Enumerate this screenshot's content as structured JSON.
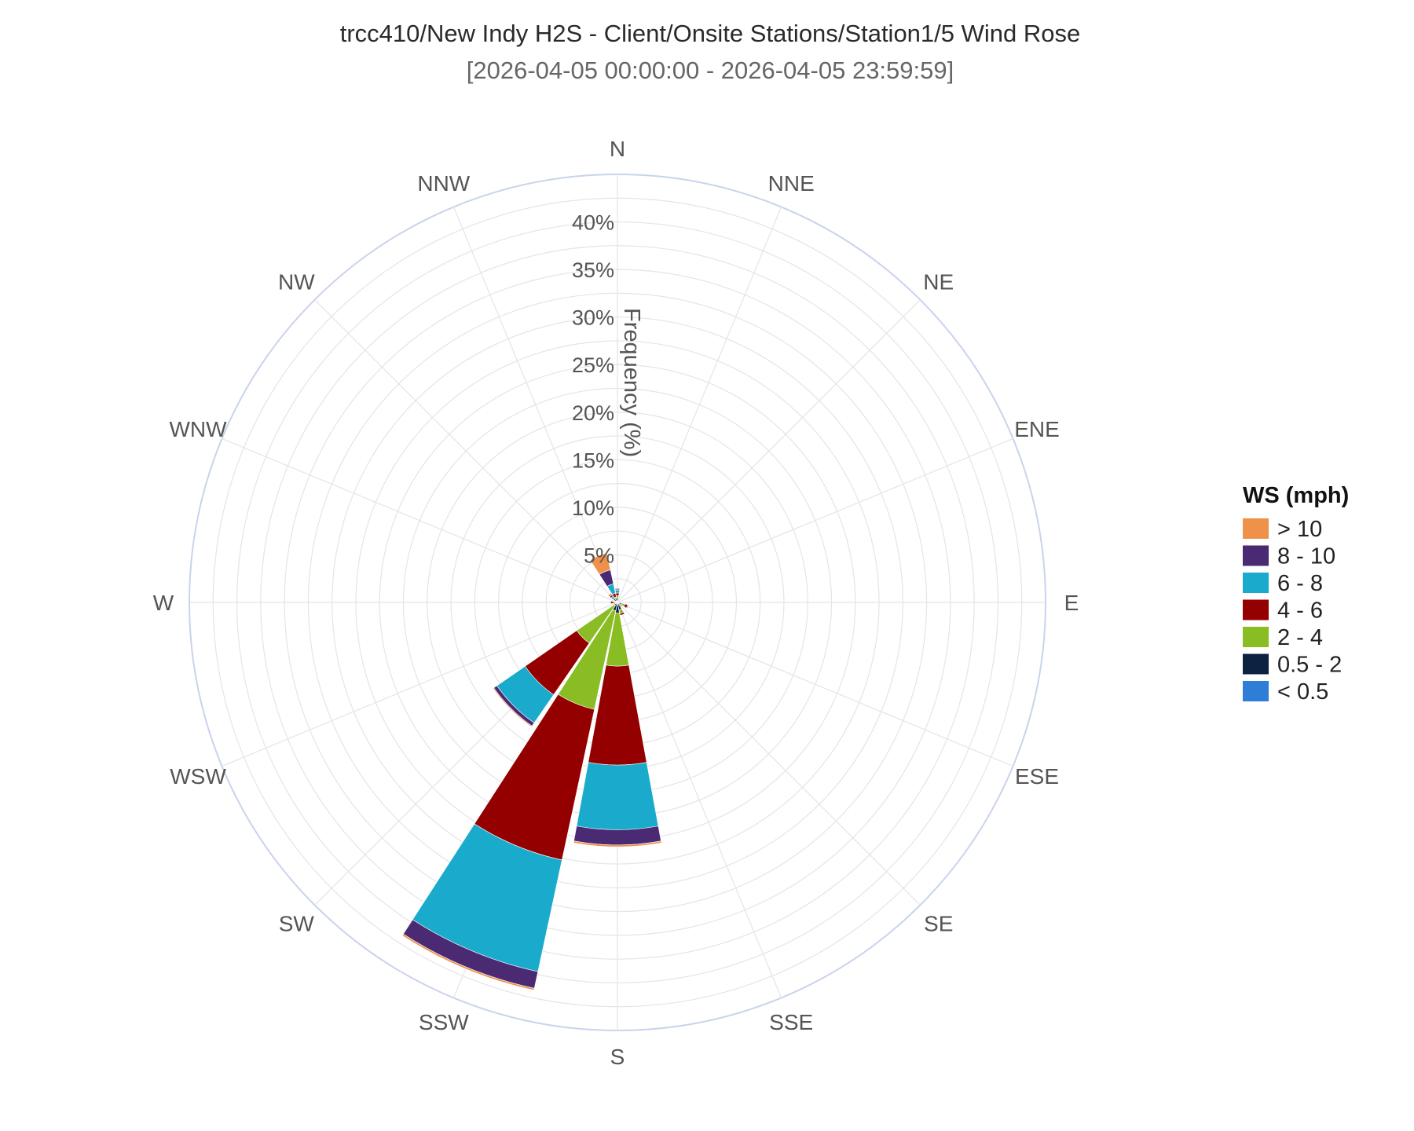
{
  "chart_data": {
    "type": "wind-rose",
    "title": "trcc410/New Indy H2S - Client/Onsite Stations/Station1/5 Wind Rose",
    "subtitle": "[2026-04-05 00:00:00 - 2026-04-05 23:59:59]",
    "radial_axis_label": "Frequency (%)",
    "radial_range": [
      0,
      45
    ],
    "radial_ticks": [
      "5%",
      "10%",
      "15%",
      "20%",
      "25%",
      "30%",
      "35%",
      "40%"
    ],
    "radial_tick_values": [
      5,
      10,
      15,
      20,
      25,
      30,
      35,
      40
    ],
    "directions": [
      "N",
      "NNE",
      "NE",
      "ENE",
      "E",
      "ESE",
      "SE",
      "SSE",
      "S",
      "SSW",
      "SW",
      "WSW",
      "W",
      "WNW",
      "NW",
      "NNW"
    ],
    "legend_title": "WS (mph)",
    "legend_position": "right",
    "series": [
      {
        "name": "< 0.5",
        "color": "#2e7dd7",
        "values": [
          0.1,
          0,
          0,
          0,
          0,
          0,
          0,
          0.1,
          0.1,
          0.1,
          0.1,
          0,
          0,
          0,
          0,
          0.1
        ]
      },
      {
        "name": "0.5 - 2",
        "color": "#0d2240",
        "values": [
          0.4,
          0,
          0,
          0,
          0,
          0.5,
          0.3,
          0.7,
          1.0,
          0.8,
          0.3,
          0.2,
          0.2,
          0,
          0.1,
          0.3
        ]
      },
      {
        "name": "2 - 4",
        "color": "#8abd24",
        "values": [
          0.2,
          0,
          0,
          0,
          0,
          0.3,
          0.2,
          0.4,
          5.6,
          10.6,
          4.8,
          0.1,
          0.2,
          0,
          0.1,
          0.2
        ]
      },
      {
        "name": "4 - 6",
        "color": "#940000",
        "values": [
          0.3,
          0,
          0,
          0,
          0,
          0.3,
          0.1,
          0.2,
          10.4,
          16.2,
          6.6,
          0.1,
          0.3,
          0,
          0.3,
          0.4
        ]
      },
      {
        "name": "6 - 8",
        "color": "#1aabcc",
        "values": [
          0.3,
          0,
          0,
          0,
          0,
          0.1,
          0,
          0,
          6.8,
          12.0,
          3.6,
          0,
          0.1,
          0,
          0.3,
          1.0
        ]
      },
      {
        "name": "8 - 10",
        "color": "#4b2a74",
        "values": [
          0.1,
          0,
          0,
          0,
          0,
          0,
          0,
          0,
          1.6,
          1.8,
          0.4,
          0,
          0,
          0,
          0.2,
          1.5
        ]
      },
      {
        "name": "> 10",
        "color": "#f09149",
        "values": [
          0.1,
          0,
          0,
          0,
          0,
          0,
          0,
          0,
          0.2,
          0.2,
          0.1,
          0,
          0,
          0,
          0.2,
          1.8
        ]
      }
    ]
  }
}
